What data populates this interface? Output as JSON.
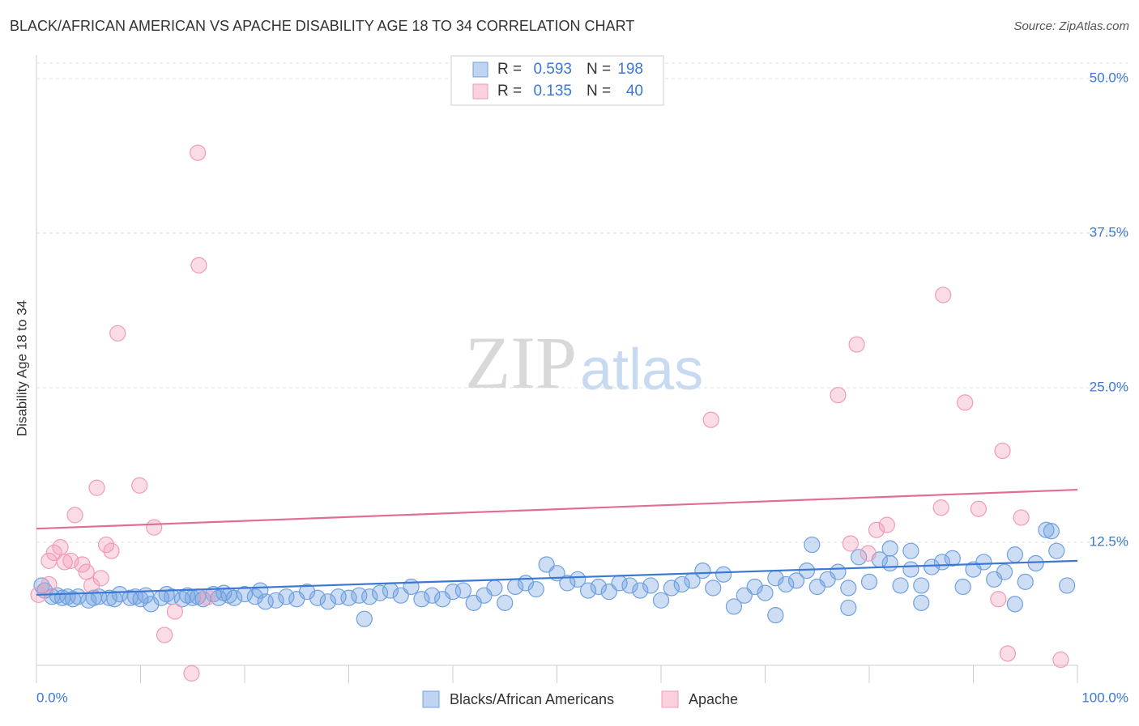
{
  "chart_data": {
    "type": "scatter",
    "title": "BLACK/AFRICAN AMERICAN VS APACHE DISABILITY AGE 18 TO 34 CORRELATION CHART",
    "source": "Source: ZipAtlas.com",
    "ylabel": "Disability Age 18 to 34",
    "watermark": [
      "ZIP",
      "atlas"
    ],
    "xlim": [
      0,
      100
    ],
    "ylim": [
      2.55,
      51.25
    ],
    "xticks": [
      {
        "value": 0,
        "label": "0.0%"
      },
      {
        "value": 100,
        "label": "100.0%"
      }
    ],
    "xminor_ticks": [
      10,
      20,
      30,
      40,
      50,
      60,
      70,
      80,
      90
    ],
    "yticks": [
      {
        "value": 12.5,
        "label": "12.5%"
      },
      {
        "value": 25,
        "label": "25.0%"
      },
      {
        "value": 37.5,
        "label": "37.5%"
      },
      {
        "value": 50,
        "label": "50.0%"
      }
    ],
    "grid": true,
    "r_label": "R =",
    "n_label": "N =",
    "series": [
      {
        "name": "Blacks/African Americans",
        "color": "#6fa0e0",
        "line_color": "#3a78d4",
        "r": 0.593,
        "n": 198,
        "trend": {
          "x": [
            0,
            100
          ],
          "y": [
            8.25,
            11.0
          ]
        },
        "x": [
          0.5,
          0.8,
          1.5,
          2,
          2.5,
          3,
          3.5,
          4,
          5,
          5.5,
          6,
          7,
          7.5,
          8,
          9,
          9.5,
          10,
          10.5,
          11,
          12,
          12.5,
          13,
          14,
          14.5,
          15,
          15.5,
          16,
          17,
          17.5,
          18,
          18.5,
          19,
          20,
          21,
          21.5,
          22,
          23,
          24,
          25,
          26,
          27,
          28,
          29,
          30,
          31,
          31.5,
          32,
          33,
          34,
          35,
          36,
          37,
          38,
          39,
          40,
          41,
          42,
          43,
          44,
          45,
          46,
          47,
          48,
          49,
          50,
          51,
          52,
          53,
          54,
          55,
          56,
          57,
          58,
          59,
          60,
          61,
          62,
          63,
          64,
          65,
          66,
          67,
          68,
          69,
          70,
          71,
          72,
          73,
          74,
          75,
          76,
          77,
          78,
          79,
          80,
          81,
          82,
          83,
          84,
          85,
          86,
          87,
          88,
          89,
          90,
          91,
          92,
          93,
          94,
          95,
          96,
          97,
          98,
          99,
          97.5,
          71,
          78,
          85,
          94,
          74.5,
          82,
          84
        ],
        "y": [
          9.0,
          8.6,
          8.1,
          8.2,
          8.0,
          8.1,
          7.9,
          8.1,
          7.8,
          8.0,
          8.1,
          8.0,
          7.9,
          8.3,
          8.0,
          8.1,
          7.9,
          8.2,
          7.5,
          8.0,
          8.3,
          8.1,
          7.9,
          8.2,
          8.0,
          8.1,
          7.9,
          8.3,
          8.0,
          8.4,
          8.2,
          8.0,
          8.3,
          8.1,
          8.6,
          7.7,
          7.8,
          8.1,
          7.9,
          8.5,
          8.0,
          7.7,
          8.1,
          8.0,
          8.2,
          6.3,
          8.1,
          8.4,
          8.6,
          8.2,
          8.9,
          7.9,
          8.2,
          7.9,
          8.5,
          8.6,
          7.6,
          8.2,
          8.8,
          7.6,
          8.9,
          9.2,
          8.7,
          10.7,
          10.0,
          9.2,
          9.5,
          8.6,
          8.9,
          8.5,
          9.2,
          9.0,
          8.6,
          9.0,
          7.8,
          8.8,
          9.1,
          9.4,
          10.2,
          8.8,
          9.9,
          7.3,
          8.2,
          8.9,
          8.4,
          9.6,
          9.1,
          9.4,
          10.2,
          8.9,
          9.5,
          10.1,
          8.8,
          11.3,
          9.3,
          11.1,
          10.8,
          9.0,
          10.3,
          9.0,
          10.5,
          10.9,
          11.2,
          8.9,
          10.3,
          10.9,
          9.5,
          10.1,
          11.5,
          9.3,
          10.8,
          13.5,
          11.8,
          9.0,
          13.4,
          6.6,
          7.2,
          7.6,
          7.5,
          12.3,
          12.0,
          11.8
        ]
      },
      {
        "name": "Apache",
        "color": "#f29bb6",
        "line_color": "#e36c94",
        "r": 0.135,
        "n": 40,
        "trend": {
          "x": [
            0,
            100
          ],
          "y": [
            13.6,
            16.75
          ]
        },
        "x": [
          0.2,
          1.2,
          1.2,
          1.7,
          2.3,
          2.7,
          3.3,
          3.7,
          4.4,
          4.8,
          5.3,
          5.8,
          6.2,
          6.7,
          7.2,
          7.8,
          9.9,
          11.3,
          12.3,
          13.3,
          14.9,
          15.5,
          15.6,
          16.4,
          64.8,
          77.0,
          78.8,
          78.2,
          79.9,
          80.7,
          81.7,
          87.1,
          86.9,
          89.2,
          90.5,
          92.4,
          92.8,
          93.3,
          94.6,
          98.4
        ],
        "y": [
          8.25,
          9.1,
          11.0,
          11.65,
          12.1,
          10.9,
          11.0,
          14.7,
          10.7,
          10.1,
          9.0,
          16.9,
          9.6,
          12.3,
          11.8,
          29.4,
          17.1,
          13.7,
          5.0,
          6.9,
          1.9,
          44.0,
          34.9,
          8.05,
          22.4,
          24.4,
          28.5,
          12.4,
          11.6,
          13.5,
          13.9,
          32.5,
          15.3,
          23.8,
          15.2,
          7.9,
          19.9,
          3.5,
          14.5,
          3.0
        ]
      }
    ]
  }
}
